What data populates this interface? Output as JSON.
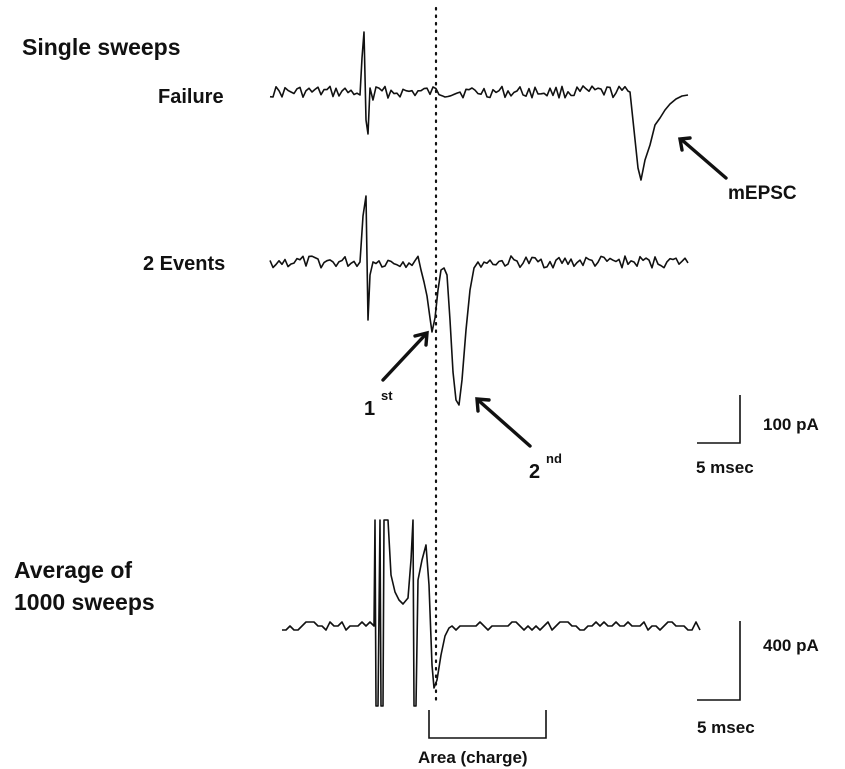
{
  "labels": {
    "single_sweeps": "Single sweeps",
    "failure": "Failure",
    "mepsc": "mEPSC",
    "two_events": "2 Events",
    "first_num": "1",
    "first_sup": "st",
    "second_num": "2",
    "second_sup": "nd",
    "average_line1": "Average of",
    "average_line2": "1000 sweeps",
    "area": "Area (charge)"
  },
  "scale_bars": {
    "top": {
      "amplitude": "100 pA",
      "time": "5 msec"
    },
    "bottom": {
      "amplitude": "400 pA",
      "time": "5 msec"
    }
  }
}
